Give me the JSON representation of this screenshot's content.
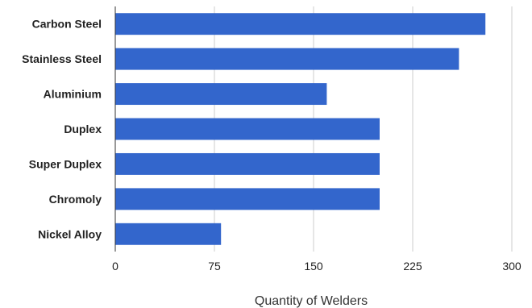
{
  "chart_data": {
    "type": "bar",
    "orientation": "horizontal",
    "categories": [
      "Carbon Steel",
      "Stainless Steel",
      "Aluminium",
      "Duplex",
      "Super Duplex",
      "Chromoly",
      "Nickel Alloy"
    ],
    "values": [
      280,
      260,
      160,
      200,
      200,
      200,
      80
    ],
    "xlabel": "Quantity of Welders",
    "ylabel": "",
    "xlim": [
      0,
      300
    ],
    "xticks": [
      "0",
      "75",
      "150",
      "225",
      "300"
    ],
    "grid": true,
    "legend": "none",
    "bar_color": "#3366cc"
  }
}
